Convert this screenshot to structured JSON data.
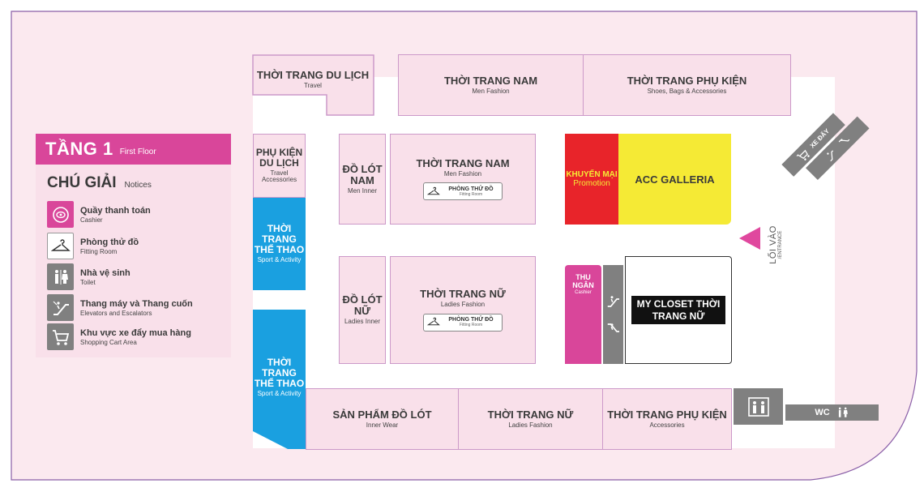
{
  "floor": {
    "title": "TẦNG 1",
    "subtitle": "First Floor"
  },
  "legend": {
    "title": "CHÚ GIẢI",
    "subtitle": "Notices",
    "items": [
      {
        "icon": "cashier-icon",
        "label": "Quầy thanh toán",
        "sub": "Cashier",
        "color": "#d9469a"
      },
      {
        "icon": "hanger-icon",
        "label": "Phòng thử đồ",
        "sub": "Fitting Room",
        "color": "#ffffff"
      },
      {
        "icon": "toilet-icon",
        "label": "Nhà vệ sinh",
        "sub": "Toilet",
        "color": "#808080"
      },
      {
        "icon": "escalator-icon",
        "label": "Thang máy và Thang cuốn",
        "sub": "Elevators and Escalators",
        "color": "#808080"
      },
      {
        "icon": "shopping-cart-icon",
        "label": "Khu vực xe đẩy mua hàng",
        "sub": "Shopping Cart Area",
        "color": "#808080"
      }
    ]
  },
  "zones": {
    "travel": {
      "name": "THỜI TRANG DU LỊCH",
      "sub": "Travel"
    },
    "men_top": {
      "name": "THỜI TRANG NAM",
      "sub": "Men Fashion"
    },
    "accessories_top": {
      "name": "THỜI TRANG PHỤ KIỆN",
      "sub": "Shoes, Bags & Accessories"
    },
    "travel_acc": {
      "name": "PHỤ KIỆN DU LỊCH",
      "sub": "Travel Accessories"
    },
    "sport_1": {
      "name": "THỜI TRANG THỂ THAO",
      "sub": "Sport & Activity"
    },
    "sport_2": {
      "name": "THỜI TRANG THỂ THAO",
      "sub": "Sport & Activity"
    },
    "men_inner": {
      "name": "ĐỒ LÓT NAM",
      "sub": "Men Inner"
    },
    "men_mid": {
      "name": "THỜI TRANG NAM",
      "sub": "Men Fashion"
    },
    "ladies_inner": {
      "name": "ĐỒ LÓT NỮ",
      "sub": "Ladies Inner"
    },
    "ladies_mid": {
      "name": "THỜI TRANG NỮ",
      "sub": "Ladies Fashion"
    },
    "inner_wear": {
      "name": "SẢN PHẨM ĐỒ LÓT",
      "sub": "Inner Wear"
    },
    "ladies_bottom": {
      "name": "THỜI TRANG NỮ",
      "sub": "Ladies Fashion"
    },
    "accessories_bottom": {
      "name": "THỜI TRANG PHỤ KIỆN",
      "sub": "Accessories"
    },
    "promotion": {
      "name": "KHUYẾN MẠI",
      "sub": "Promotion",
      "color": "#e8242a"
    },
    "acc_galleria": {
      "name": "ACC GALLERIA",
      "color": "#f5ea35"
    },
    "cashier": {
      "name": "THU NGÂN",
      "sub": "Cashier",
      "color": "#d9469a"
    },
    "my_closet": {
      "name": "MY CLOSET THỜI TRANG NỮ"
    }
  },
  "fitting_room": {
    "label": "PHÒNG THỬ ĐỒ",
    "sub": "Fitting Room"
  },
  "entrance": {
    "label": "LỐI VÀO",
    "sub": "/ENTRANCE",
    "color": "#e0489e"
  },
  "cart_area": {
    "label": "XE ĐẨY"
  },
  "wc": {
    "label": "WC"
  },
  "colors": {
    "background": "#fbe9ef",
    "floor": "#ffffff",
    "border": "#8a5fa8",
    "zone": "#f9e0ea",
    "sport": "#1aa0e0",
    "grey": "#808080"
  }
}
